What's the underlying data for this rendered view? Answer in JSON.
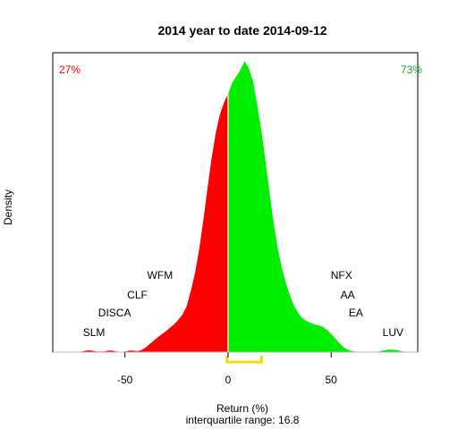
{
  "chart_data": {
    "type": "area",
    "title": "2014  year to date 2014-09-12",
    "xlabel": "Return (%)",
    "subtitle": "interquartile range: 16.8",
    "ylabel": "Density",
    "xlim": [
      -85,
      92
    ],
    "ylim": [
      0,
      0.0595
    ],
    "x_ticks": [
      -50,
      0,
      50
    ],
    "x_tick_labels": [
      "-50",
      "0",
      "50"
    ],
    "grid": false,
    "pct_negative": "27%",
    "pct_positive": "73%",
    "colors": {
      "negative": "#ff0000",
      "positive": "#00ee00",
      "iqr": "#ffd700",
      "zero_line": "#ffffff",
      "pct_negative_text": "#ff0000",
      "pct_positive_text": "#22aa22",
      "baseline": "#bbbbbb"
    },
    "iqr_range": [
      -0.5,
      16.3
    ],
    "density_negative": {
      "x": [
        -72,
        -70,
        -68,
        -66,
        -64,
        -62,
        -60,
        -58,
        -56,
        -54,
        -52,
        -50,
        -48,
        -46,
        -44,
        -42,
        -40,
        -38,
        -36,
        -34,
        -32,
        -30,
        -28,
        -26,
        -24,
        -22,
        -20,
        -18,
        -16,
        -14,
        -12,
        -10,
        -8,
        -6,
        -4,
        -2,
        -1,
        0
      ],
      "y": [
        5e-05,
        0.0002,
        0.00035,
        0.0003,
        0.00015,
        0.0001,
        0.00015,
        0.0003,
        0.0003,
        0.0001,
        5e-05,
        0.0001,
        0.0003,
        0.0003,
        0.0002,
        0.0004,
        0.0009,
        0.0016,
        0.0023,
        0.003,
        0.0036,
        0.0042,
        0.0049,
        0.0056,
        0.0065,
        0.0075,
        0.0092,
        0.0122,
        0.0158,
        0.0205,
        0.0262,
        0.0325,
        0.0385,
        0.0435,
        0.0472,
        0.0495,
        0.0505,
        0.0512
      ]
    },
    "density_positive": {
      "x": [
        0,
        2,
        4,
        6,
        8,
        10,
        12,
        14,
        16,
        18,
        20,
        22,
        24,
        26,
        28,
        30,
        32,
        34,
        36,
        38,
        40,
        42,
        44,
        46,
        48,
        50,
        52,
        54,
        56,
        58,
        60,
        62,
        64,
        66,
        68,
        70,
        72,
        74,
        76,
        78,
        80,
        82,
        84,
        86
      ],
      "y": [
        0.0512,
        0.0535,
        0.0548,
        0.0561,
        0.0578,
        0.0565,
        0.054,
        0.0495,
        0.0445,
        0.0385,
        0.0322,
        0.026,
        0.0208,
        0.0168,
        0.0138,
        0.0112,
        0.0092,
        0.0078,
        0.0068,
        0.0062,
        0.0058,
        0.0055,
        0.0053,
        0.005,
        0.0044,
        0.0036,
        0.0027,
        0.0018,
        0.001,
        0.0005,
        0.0002,
        0.0001,
        5e-05,
        0.0,
        0.0,
        0.0,
        5e-05,
        0.0002,
        0.0004,
        0.0005,
        0.0005,
        0.0004,
        0.0002,
        5e-05
      ]
    },
    "annotations": [
      {
        "text": "SLM",
        "x": -65,
        "y": 0.0032
      },
      {
        "text": "DISCA",
        "x": -55,
        "y": 0.0071
      },
      {
        "text": "CLF",
        "x": -44,
        "y": 0.0107
      },
      {
        "text": "WFM",
        "x": -33,
        "y": 0.0146
      },
      {
        "text": "NFX",
        "x": 55,
        "y": 0.0146
      },
      {
        "text": "AA",
        "x": 58,
        "y": 0.0107
      },
      {
        "text": "EA",
        "x": 62,
        "y": 0.0071
      },
      {
        "text": "LUV",
        "x": 80,
        "y": 0.0032
      }
    ]
  }
}
